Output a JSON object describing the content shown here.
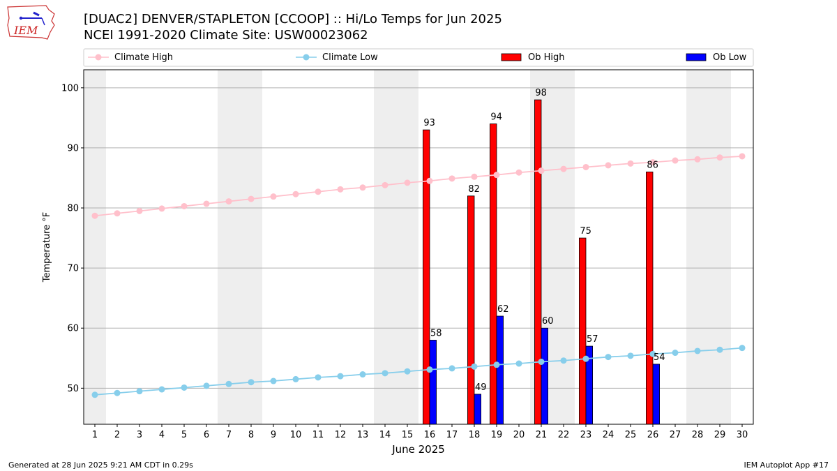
{
  "logo": {
    "text": "IEM",
    "icon": "iowa-state-outline-logo"
  },
  "title_line1": "[DUAC2] DENVER/STAPLETON [CCOOP] :: Hi/Lo Temps for Jun 2025",
  "title_line2": "NCEI 1991-2020 Climate Site: USW00023062",
  "footer_left": "Generated at 28 Jun 2025 9:21 AM CDT in 0.29s",
  "footer_right": "IEM Autoplot App #17",
  "colors": {
    "climate_high": "#ffc0cb",
    "climate_low": "#87ceeb",
    "ob_high": "#ff0000",
    "ob_low": "#0000ff",
    "weekend_shade": "#eeeeee",
    "grid": "#b0b0b0"
  },
  "chart_data": {
    "type": "bar",
    "xlabel": "June 2025",
    "ylabel": "Temperature °F",
    "ylim": [
      44,
      103
    ],
    "xlim": [
      0.5,
      30.5
    ],
    "yticks": [
      50,
      60,
      70,
      80,
      90,
      100
    ],
    "xticks": [
      1,
      2,
      3,
      4,
      5,
      6,
      7,
      8,
      9,
      10,
      11,
      12,
      13,
      14,
      15,
      16,
      17,
      18,
      19,
      20,
      21,
      22,
      23,
      24,
      25,
      26,
      27,
      28,
      29,
      30
    ],
    "grid": "y",
    "legend_placement": "top",
    "weekend_days": [
      1,
      7,
      8,
      14,
      15,
      21,
      22,
      28,
      29
    ],
    "series": [
      {
        "name": "Climate High",
        "kind": "line",
        "x": [
          1,
          2,
          3,
          4,
          5,
          6,
          7,
          8,
          9,
          10,
          11,
          12,
          13,
          14,
          15,
          16,
          17,
          18,
          19,
          20,
          21,
          22,
          23,
          24,
          25,
          26,
          27,
          28,
          29,
          30
        ],
        "values": [
          78.7,
          79.1,
          79.5,
          79.9,
          80.3,
          80.7,
          81.1,
          81.5,
          81.9,
          82.3,
          82.7,
          83.1,
          83.4,
          83.8,
          84.2,
          84.5,
          84.9,
          85.2,
          85.5,
          85.9,
          86.2,
          86.5,
          86.8,
          87.1,
          87.4,
          87.6,
          87.9,
          88.1,
          88.4,
          88.6
        ]
      },
      {
        "name": "Climate Low",
        "kind": "line",
        "x": [
          1,
          2,
          3,
          4,
          5,
          6,
          7,
          8,
          9,
          10,
          11,
          12,
          13,
          14,
          15,
          16,
          17,
          18,
          19,
          20,
          21,
          22,
          23,
          24,
          25,
          26,
          27,
          28,
          29,
          30
        ],
        "values": [
          48.9,
          49.2,
          49.5,
          49.8,
          50.1,
          50.4,
          50.7,
          51.0,
          51.2,
          51.5,
          51.8,
          52.0,
          52.3,
          52.5,
          52.8,
          53.1,
          53.3,
          53.6,
          53.9,
          54.1,
          54.4,
          54.6,
          54.9,
          55.2,
          55.4,
          55.7,
          55.9,
          56.2,
          56.4,
          56.7
        ]
      },
      {
        "name": "Ob High",
        "kind": "bar",
        "x": [
          16,
          18,
          19,
          21,
          23,
          26
        ],
        "values": [
          93,
          82,
          94,
          98,
          75,
          86
        ]
      },
      {
        "name": "Ob Low",
        "kind": "bar",
        "x": [
          16,
          18,
          19,
          21,
          23,
          26
        ],
        "values": [
          58,
          49,
          62,
          60,
          57,
          54
        ]
      }
    ]
  }
}
